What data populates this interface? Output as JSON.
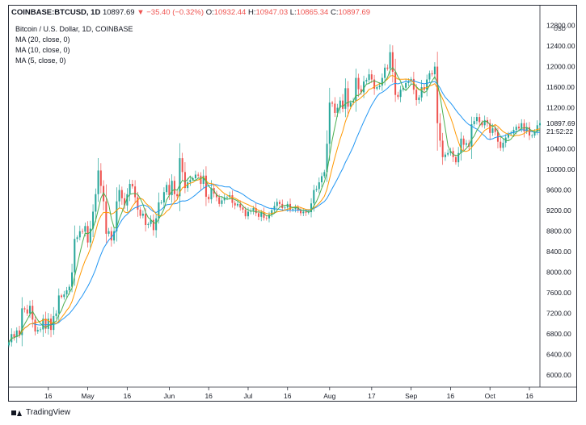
{
  "header": {
    "symbol": "COINBASE:BTCUSD, 1D",
    "last": "10897.69",
    "change": "▼ −35.40 (−0.32%)",
    "o_label": "O:",
    "o_val": "10932.44",
    "h_label": "H:",
    "h_val": "10947.03",
    "l_label": "L:",
    "l_val": "10865.34",
    "c_label": "C:",
    "c_val": "10897.69"
  },
  "legend": {
    "title": "Bitcoin / U.S. Dollar, 1D, COINBASE",
    "ma20": "MA (20, close, 0)",
    "ma10": "MA (10, close, 0)",
    "ma5": "MA (5, close, 0)"
  },
  "price_axis": {
    "currency": "USD",
    "current_price": "10897.69",
    "countdown": "21:52:22"
  },
  "footer": {
    "logo_text": "TradingView"
  },
  "colors": {
    "up": "#26a69a",
    "down": "#ef5350",
    "ma20": "#2196f3",
    "ma10": "#ff9800",
    "ma5": "#4caf50",
    "price_tag_bg": "#ffffff"
  },
  "chart_data": {
    "type": "candlestick",
    "y_ticks": [
      6000,
      6400,
      6800,
      7200,
      7600,
      8000,
      8400,
      8800,
      9200,
      9600,
      10000,
      10400,
      10800,
      11200,
      11600,
      12000,
      12400,
      12800
    ],
    "ylim": [
      5800,
      12950
    ],
    "x_ticks": [
      {
        "label": "16",
        "date": "2020-04-16"
      },
      {
        "label": "May",
        "date": "2020-05-01"
      },
      {
        "label": "16",
        "date": "2020-05-16"
      },
      {
        "label": "Jun",
        "date": "2020-06-01"
      },
      {
        "label": "16",
        "date": "2020-06-16"
      },
      {
        "label": "Jul",
        "date": "2020-07-01"
      },
      {
        "label": "16",
        "date": "2020-07-16"
      },
      {
        "label": "Aug",
        "date": "2020-08-01"
      },
      {
        "label": "17",
        "date": "2020-08-17"
      },
      {
        "label": "Sep",
        "date": "2020-09-01"
      },
      {
        "label": "16",
        "date": "2020-09-16"
      },
      {
        "label": "Oct",
        "date": "2020-10-01"
      },
      {
        "label": "16",
        "date": "2020-10-16"
      }
    ],
    "xlim": [
      "2020-04-01",
      "2020-10-20"
    ],
    "start_date": "2020-04-01",
    "closes": [
      6640,
      6800,
      6740,
      6870,
      6780,
      7300,
      7280,
      7200,
      7350,
      7080,
      6850,
      6880,
      6890,
      7100,
      6900,
      7100,
      6880,
      7150,
      7200,
      7550,
      7520,
      7570,
      7650,
      7720,
      8000,
      8650,
      8680,
      8800,
      8790,
      8900,
      8580,
      8850,
      9180,
      9520,
      9980,
      9680,
      9380,
      8750,
      8800,
      8620,
      8800,
      9380,
      9600,
      9440,
      9300,
      9520,
      9720,
      9670,
      9460,
      9220,
      9100,
      9140,
      8920,
      8940,
      9020,
      8820,
      9050,
      9360,
      9360,
      9560,
      9700,
      9500,
      9780,
      9520,
      9480,
      10220,
      9950,
      9640,
      9750,
      9800,
      9830,
      9900,
      9880,
      9720,
      9880,
      9470,
      9420,
      9640,
      9530,
      9460,
      9330,
      9400,
      9460,
      9460,
      9500,
      9350,
      9300,
      9330,
      9260,
      9220,
      9090,
      9180,
      9200,
      9250,
      9150,
      9080,
      9160,
      9060,
      9050,
      9120,
      9210,
      9290,
      9370,
      9330,
      9250,
      9260,
      9330,
      9220,
      9230,
      9270,
      9200,
      9150,
      9180,
      9160,
      9170,
      9340,
      9600,
      9620,
      9750,
      9870,
      9950,
      10500,
      11300,
      11280,
      11100,
      11200,
      11340,
      11180,
      11580,
      11220,
      11300,
      11330,
      11780,
      11560,
      11500,
      11710,
      11740,
      11850,
      11750,
      11570,
      11600,
      11630,
      11780,
      11980,
      11960,
      12280,
      11900,
      11450,
      11410,
      11550,
      11590,
      11680,
      11720,
      11760,
      11550,
      11350,
      11400,
      11600,
      11550,
      11750,
      11870,
      11850,
      12000,
      10900,
      10560,
      10240,
      10290,
      10320,
      10360,
      10240,
      10140,
      10320,
      10600,
      10480,
      10510,
      10440,
      10880,
      10940,
      11020,
      10920,
      10860,
      10960,
      10900,
      10710,
      10800,
      10730,
      10540,
      10420,
      10520,
      10620,
      10690,
      10700,
      10770,
      10830,
      10800,
      10900,
      10740,
      10820,
      10660,
      10660,
      10740,
      10860,
      10900
    ]
  }
}
